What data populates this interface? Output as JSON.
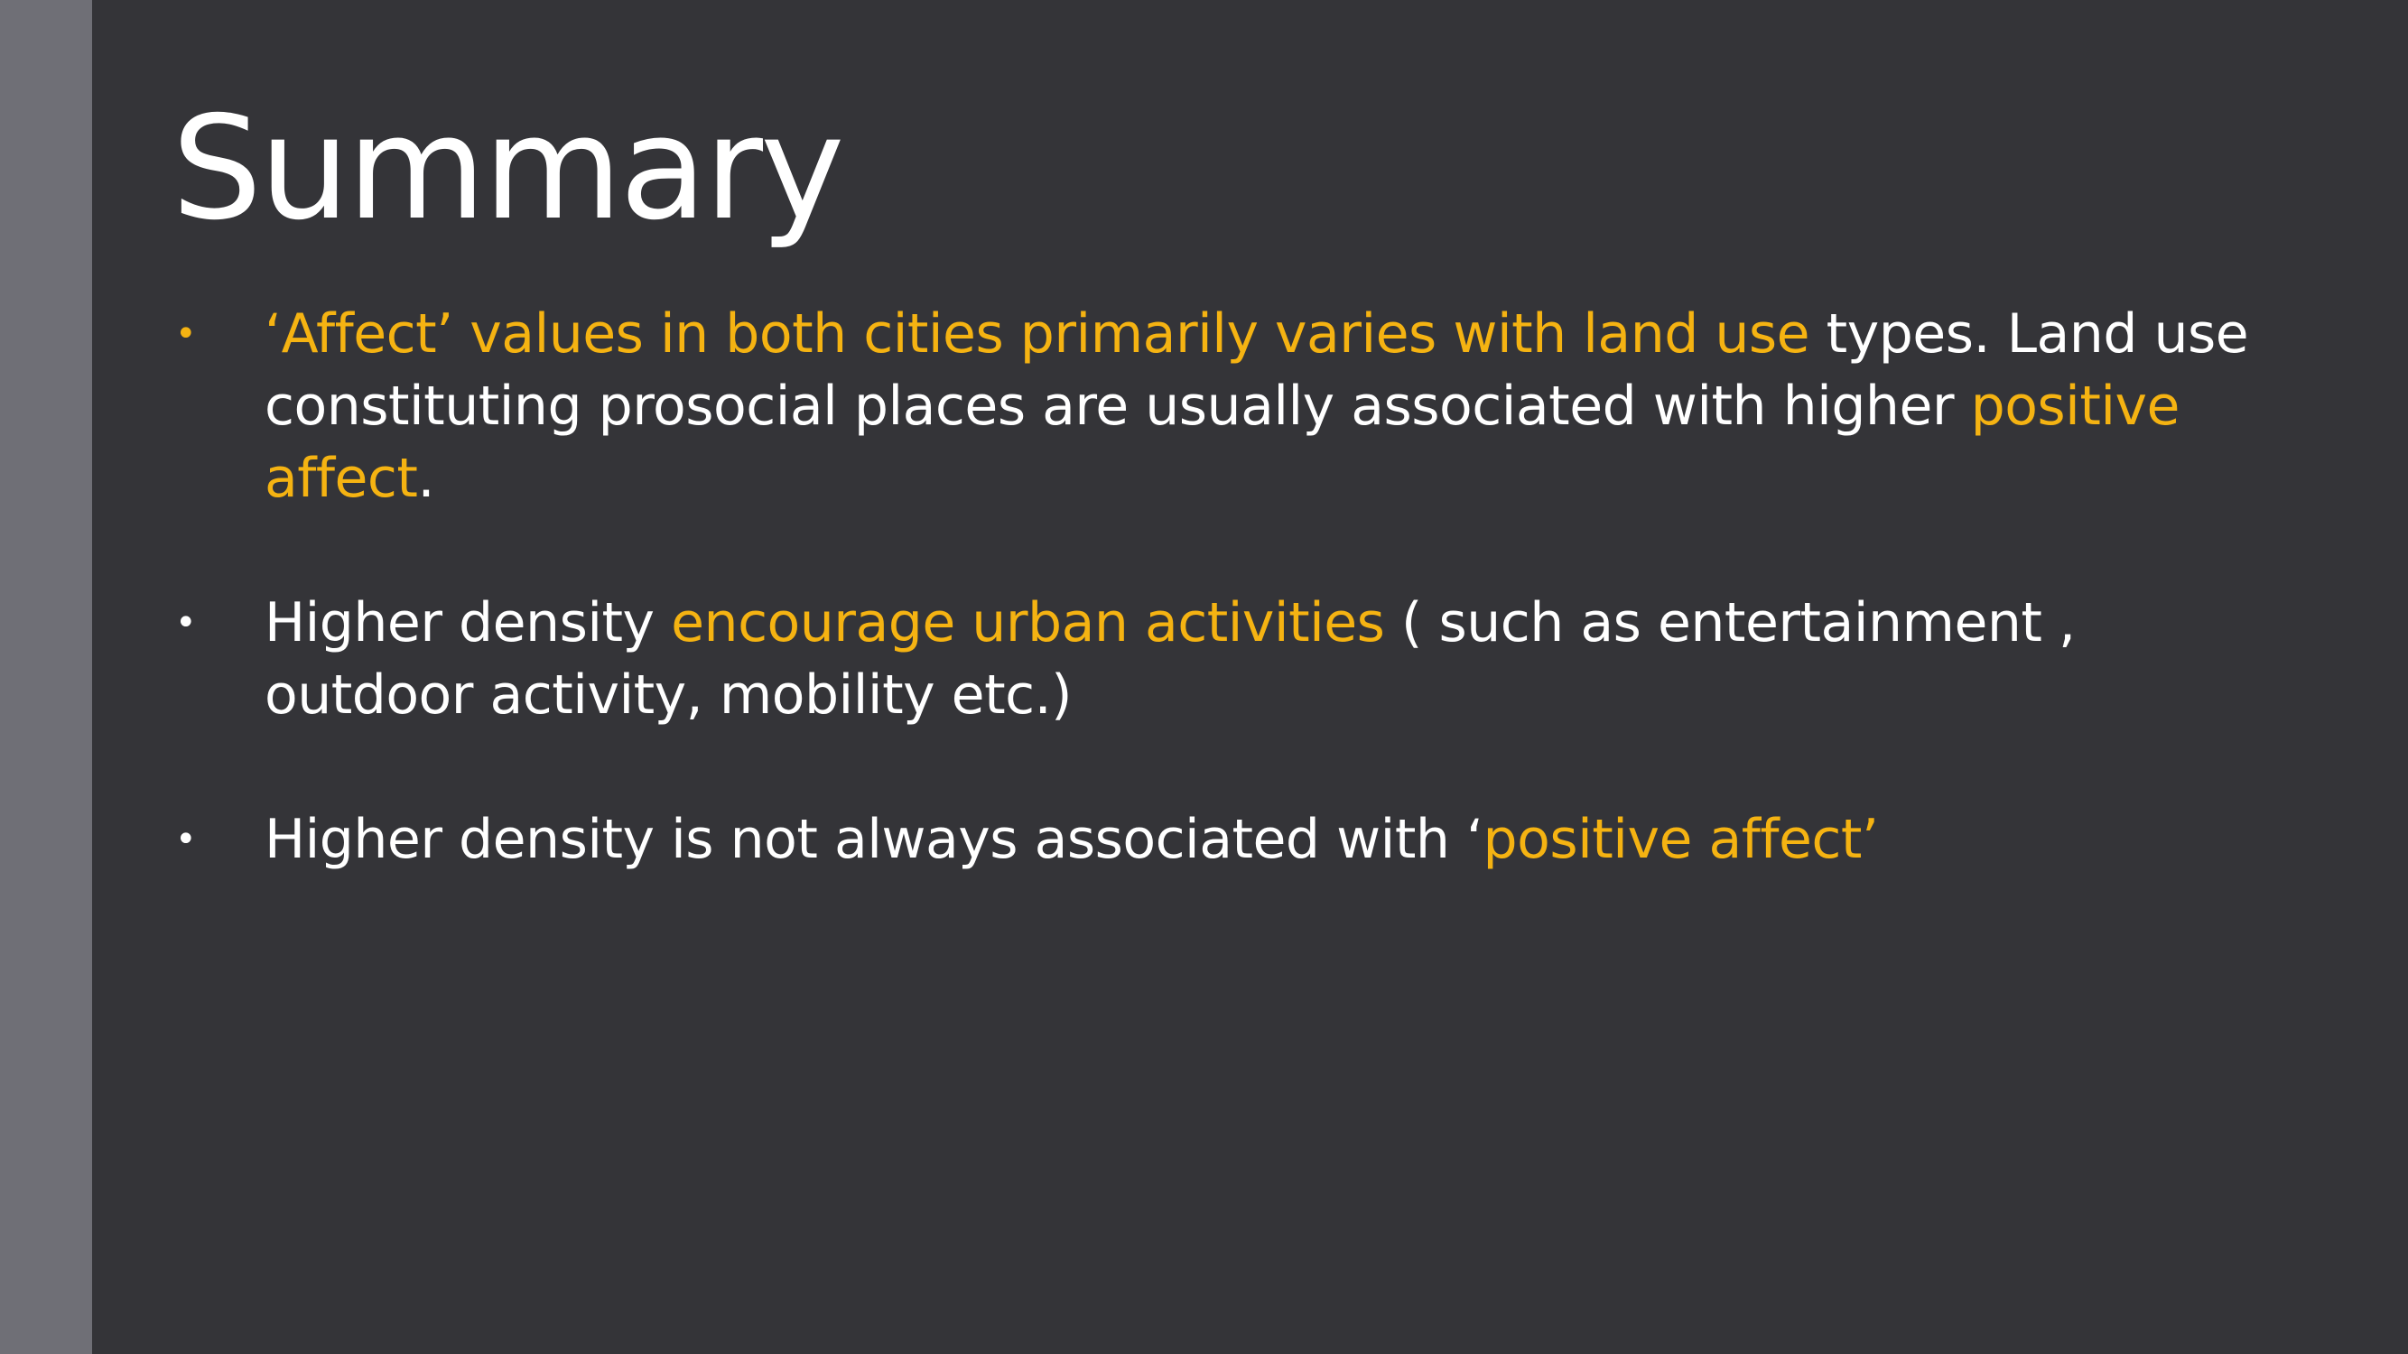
{
  "slide": {
    "title": "Summary",
    "colors": {
      "background": "#343438",
      "sidebar": "#6f6f76",
      "text": "#ffffff",
      "accent": "#f5b312"
    },
    "bullets": [
      {
        "marker": "•",
        "marker_accent": true,
        "parts": [
          {
            "text": "‘Affect’ values in both cities primarily varies with land use",
            "highlight": true
          },
          {
            "text": " types. Land use constituting prosocial places are usually associated with higher ",
            "highlight": false
          },
          {
            "text": "positive affect",
            "highlight": true
          },
          {
            "text": ".",
            "highlight": false
          }
        ]
      },
      {
        "marker": "•",
        "marker_accent": false,
        "parts": [
          {
            "text": "Higher density ",
            "highlight": false
          },
          {
            "text": "encourage urban activities",
            "highlight": true
          },
          {
            "text": " ( such as entertainment , outdoor activity, mobility etc.)",
            "highlight": false
          }
        ]
      },
      {
        "marker": "•",
        "marker_accent": false,
        "parts": [
          {
            "text": "Higher density is not always associated with ‘",
            "highlight": false
          },
          {
            "text": "positive affect’",
            "highlight": true
          }
        ]
      }
    ]
  }
}
